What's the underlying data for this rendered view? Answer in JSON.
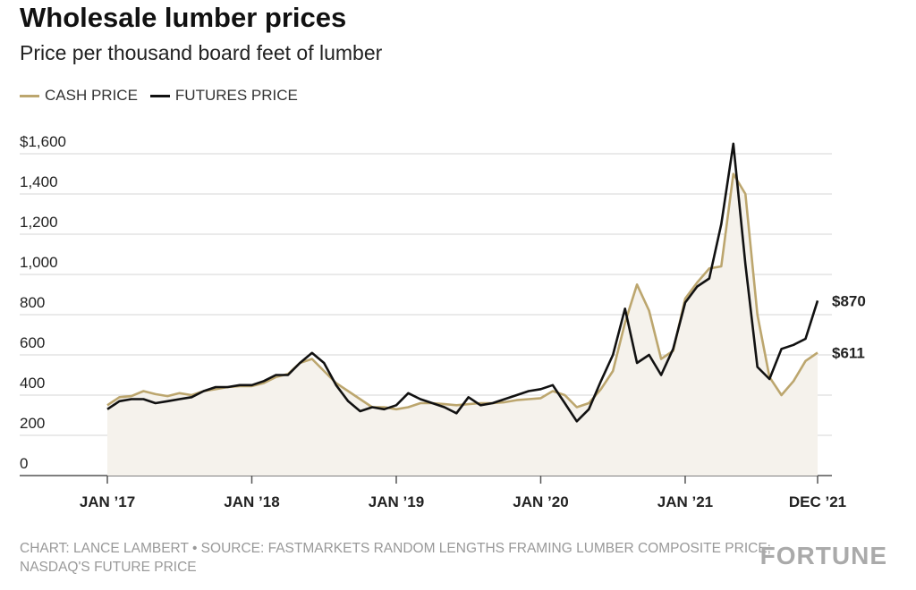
{
  "chart_data": {
    "type": "line",
    "title": "Wholesale lumber prices",
    "subtitle": "Price per thousand board feet of lumber",
    "source": "CHART: LANCE LAMBERT • SOURCE: FASTMARKETS RANDOM LENGTHS FRAMING LUMBER COMPOSITE PRICE; NASDAQ'S FUTURE PRICE",
    "brand": "FORTUNE",
    "x": [
      "2017-01",
      "2017-02",
      "2017-03",
      "2017-04",
      "2017-05",
      "2017-06",
      "2017-07",
      "2017-08",
      "2017-09",
      "2017-10",
      "2017-11",
      "2017-12",
      "2018-01",
      "2018-02",
      "2018-03",
      "2018-04",
      "2018-05",
      "2018-06",
      "2018-07",
      "2018-08",
      "2018-09",
      "2018-10",
      "2018-11",
      "2018-12",
      "2019-01",
      "2019-02",
      "2019-03",
      "2019-04",
      "2019-05",
      "2019-06",
      "2019-07",
      "2019-08",
      "2019-09",
      "2019-10",
      "2019-11",
      "2019-12",
      "2020-01",
      "2020-02",
      "2020-03",
      "2020-04",
      "2020-05",
      "2020-06",
      "2020-07",
      "2020-08",
      "2020-09",
      "2020-10",
      "2020-11",
      "2020-12",
      "2021-01",
      "2021-02",
      "2021-03",
      "2021-04",
      "2021-05",
      "2021-06",
      "2021-07",
      "2021-08",
      "2021-09",
      "2021-10",
      "2021-11",
      "2021-12"
    ],
    "series": [
      {
        "name": "CASH PRICE",
        "color": "#bca66e",
        "area_color": "#f5f2ec",
        "values": [
          350,
          390,
          395,
          420,
          405,
          395,
          410,
          400,
          420,
          430,
          440,
          445,
          445,
          460,
          490,
          505,
          560,
          580,
          520,
          460,
          420,
          380,
          340,
          340,
          330,
          340,
          360,
          360,
          355,
          350,
          355,
          360,
          360,
          365,
          375,
          380,
          385,
          420,
          400,
          340,
          360,
          430,
          520,
          760,
          950,
          820,
          580,
          620,
          880,
          960,
          1030,
          1040,
          1500,
          1400,
          800,
          490,
          400,
          470,
          570,
          611
        ],
        "value_labels": [
          null,
          null,
          null,
          null,
          null,
          null,
          null,
          null,
          null,
          null,
          null,
          null,
          null,
          null,
          null,
          null,
          null,
          null,
          null,
          null,
          null,
          null,
          null,
          null,
          null,
          null,
          null,
          null,
          null,
          null,
          null,
          null,
          null,
          null,
          null,
          null,
          null,
          null,
          null,
          null,
          null,
          null,
          null,
          null,
          null,
          null,
          null,
          null,
          null,
          null,
          null,
          null,
          null,
          null,
          null,
          null,
          null,
          null,
          null,
          "$611"
        ]
      },
      {
        "name": "FUTURES PRICE",
        "color": "#111111",
        "values": [
          330,
          370,
          380,
          380,
          360,
          370,
          380,
          390,
          420,
          440,
          440,
          450,
          450,
          470,
          500,
          500,
          560,
          610,
          560,
          450,
          370,
          320,
          340,
          330,
          350,
          410,
          380,
          360,
          340,
          310,
          390,
          350,
          360,
          380,
          400,
          420,
          430,
          450,
          360,
          270,
          330,
          470,
          600,
          830,
          560,
          600,
          500,
          630,
          860,
          940,
          980,
          1250,
          1650,
          1050,
          540,
          480,
          630,
          650,
          680,
          870
        ],
        "value_labels": [
          null,
          null,
          null,
          null,
          null,
          null,
          null,
          null,
          null,
          null,
          null,
          null,
          null,
          null,
          null,
          null,
          null,
          null,
          null,
          null,
          null,
          null,
          null,
          null,
          null,
          null,
          null,
          null,
          null,
          null,
          null,
          null,
          null,
          null,
          null,
          null,
          null,
          null,
          null,
          null,
          null,
          null,
          null,
          null,
          null,
          null,
          null,
          null,
          null,
          null,
          null,
          null,
          null,
          null,
          null,
          null,
          null,
          null,
          null,
          "$870"
        ]
      }
    ],
    "xticks": [
      {
        "value": "2017-01",
        "label": "JAN ’17"
      },
      {
        "value": "2018-01",
        "label": "JAN ’18"
      },
      {
        "value": "2019-01",
        "label": "JAN ’19"
      },
      {
        "value": "2020-01",
        "label": "JAN ’20"
      },
      {
        "value": "2021-01",
        "label": "JAN ’21"
      },
      {
        "value": "2021-12",
        "label": "DEC ’21"
      }
    ],
    "ylim": [
      0,
      1700
    ],
    "yticks": [
      0,
      200,
      400,
      600,
      800,
      {
        "value": 1000,
        "label": "1,000"
      },
      {
        "value": 1200,
        "label": "1,200"
      },
      {
        "value": 1400,
        "label": "1,400"
      },
      {
        "value": 1600,
        "label": "$1,600"
      }
    ],
    "grid": true
  }
}
